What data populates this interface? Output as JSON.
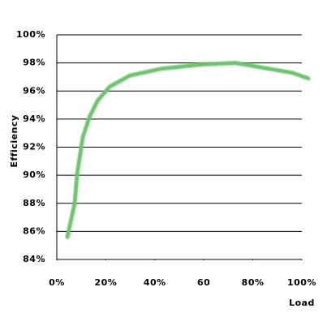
{
  "chart_data": {
    "type": "line",
    "x_label": "Load",
    "y_label": "Efficiency",
    "x": [
      4.3,
      7.3,
      8.3,
      10.6,
      13.2,
      16.6,
      21.5,
      29.8,
      43.0,
      59.6,
      72.8,
      82.8,
      96.0,
      102.6
    ],
    "values": [
      85.6,
      88.0,
      90.1,
      92.7,
      94.1,
      95.3,
      96.3,
      97.1,
      97.6,
      97.9,
      98.0,
      97.7,
      97.3,
      96.9
    ],
    "color": "#6cc46c",
    "xlim": [
      0,
      100
    ],
    "xticks": [
      {
        "value": 0,
        "label": "0%"
      },
      {
        "value": 20,
        "label": "20%"
      },
      {
        "value": 40,
        "label": "40%"
      },
      60,
      {
        "value": 80,
        "label": "80%"
      },
      {
        "value": 100,
        "label": "100%"
      }
    ],
    "ylim": [
      84,
      100
    ],
    "yticks": [
      {
        "value": 84,
        "label": "84%"
      },
      {
        "value": 86,
        "label": "86%"
      },
      {
        "value": 88,
        "label": "88%"
      },
      {
        "value": 90,
        "label": "90%"
      },
      {
        "value": 92,
        "label": "92%"
      },
      {
        "value": 94,
        "label": "94%"
      },
      {
        "value": 96,
        "label": "96%"
      },
      {
        "value": 98,
        "label": "98%"
      },
      {
        "value": 100,
        "label": "100%"
      }
    ],
    "grid": true
  }
}
